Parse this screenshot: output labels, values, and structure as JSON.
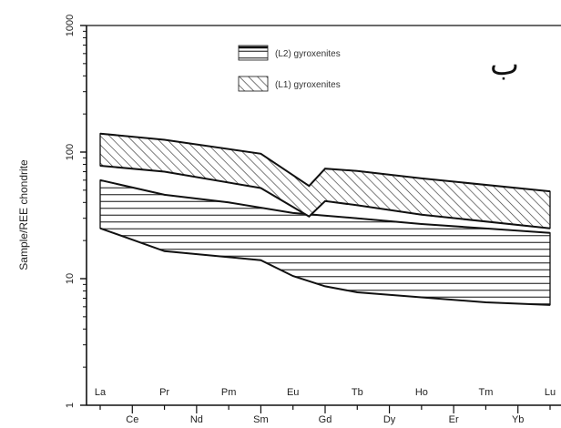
{
  "chart_data": {
    "type": "area",
    "title": "",
    "ylabel": "Sample/REE chondrite",
    "xlabel": "",
    "yscale": "log",
    "ylim": [
      1,
      1000
    ],
    "y_ticks": [
      "1",
      "10",
      "100",
      "1000"
    ],
    "corner_label": "ب",
    "categories": [
      "La",
      "Ce",
      "Pr",
      "Nd",
      "Pm",
      "Sm",
      "Eu",
      "Gd",
      "Tb",
      "Dy",
      "Ho",
      "Er",
      "Tm",
      "Yb",
      "Lu"
    ],
    "top_row_labels": [
      "La",
      "Pr",
      "Pm",
      "Eu",
      "Tb",
      "Ho",
      "Tm",
      "Lu"
    ],
    "bottom_row_labels": [
      "Ce",
      "Nd",
      "Sm",
      "Gd",
      "Dy",
      "Er",
      "Yb"
    ],
    "legend": [
      {
        "label": "(L2) gyroxenites",
        "pattern": "horizontal"
      },
      {
        "label": "(L1) gyroxenites",
        "pattern": "hatched"
      }
    ],
    "series": [
      {
        "name": "(L1) gyroxenites",
        "pattern": "hatched",
        "upper": [
          {
            "x": 0,
            "y": 140
          },
          {
            "x": 2,
            "y": 125
          },
          {
            "x": 5,
            "y": 97
          },
          {
            "x": 6.5,
            "y": 54
          },
          {
            "x": 7,
            "y": 74
          },
          {
            "x": 8,
            "y": 71
          },
          {
            "x": 10,
            "y": 62
          },
          {
            "x": 14,
            "y": 49
          }
        ],
        "lower": [
          {
            "x": 0,
            "y": 78
          },
          {
            "x": 2,
            "y": 70
          },
          {
            "x": 5,
            "y": 52
          },
          {
            "x": 6.5,
            "y": 31
          },
          {
            "x": 7,
            "y": 41
          },
          {
            "x": 8,
            "y": 38
          },
          {
            "x": 10,
            "y": 32
          },
          {
            "x": 14,
            "y": 25
          }
        ]
      },
      {
        "name": "(L2) gyroxenites",
        "pattern": "horizontal",
        "upper": [
          {
            "x": 0,
            "y": 60
          },
          {
            "x": 2,
            "y": 46
          },
          {
            "x": 4,
            "y": 40
          },
          {
            "x": 6,
            "y": 33
          },
          {
            "x": 8,
            "y": 30
          },
          {
            "x": 10,
            "y": 27
          },
          {
            "x": 14,
            "y": 23
          }
        ],
        "lower": [
          {
            "x": 0,
            "y": 25
          },
          {
            "x": 2,
            "y": 16.5
          },
          {
            "x": 5,
            "y": 14
          },
          {
            "x": 6,
            "y": 10.5
          },
          {
            "x": 7,
            "y": 8.7
          },
          {
            "x": 8,
            "y": 7.8
          },
          {
            "x": 12,
            "y": 6.5
          },
          {
            "x": 14,
            "y": 6.2
          }
        ]
      }
    ]
  }
}
